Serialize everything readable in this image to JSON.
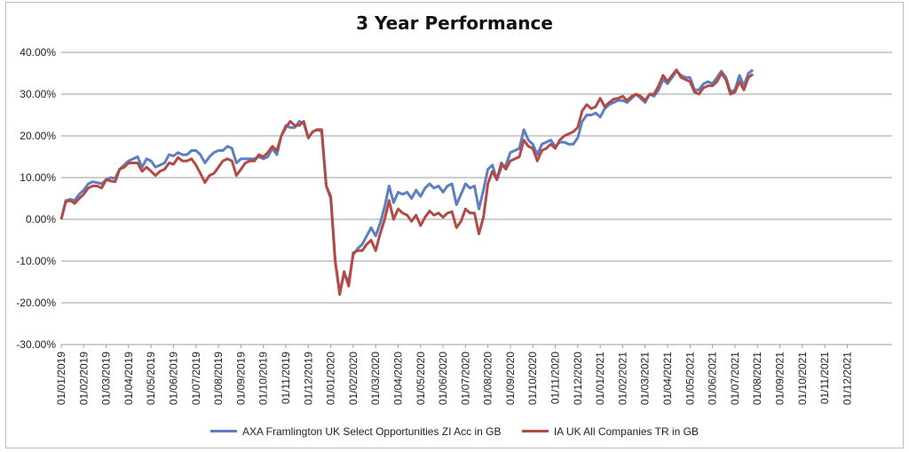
{
  "chart_data": {
    "type": "line",
    "title": "3 Year Performance",
    "ylim": [
      -30,
      40
    ],
    "y_ticks": [
      {
        "v": 40,
        "label": "40.00%"
      },
      {
        "v": 30,
        "label": "30.00%"
      },
      {
        "v": 20,
        "label": "20.00%"
      },
      {
        "v": 10,
        "label": "10.00%"
      },
      {
        "v": 0,
        "label": "0.00%"
      },
      {
        "v": -10,
        "label": "-10.00%"
      },
      {
        "v": -20,
        "label": "-20.00%"
      },
      {
        "v": -30,
        "label": "-30.00%"
      }
    ],
    "x_categories": [
      "01/01/2019",
      "01/02/2019",
      "01/03/2019",
      "01/04/2019",
      "01/05/2019",
      "01/06/2019",
      "01/07/2019",
      "01/08/2019",
      "01/09/2019",
      "01/10/2019",
      "01/11/2019",
      "01/12/2019",
      "01/01/2020",
      "01/02/2020",
      "01/03/2020",
      "01/04/2020",
      "01/05/2020",
      "01/06/2020",
      "01/07/2020",
      "01/08/2020",
      "01/09/2020",
      "01/10/2020",
      "01/11/2020",
      "01/12/2020",
      "01/01/2021",
      "01/02/2021",
      "01/03/2021",
      "01/04/2021",
      "01/05/2021",
      "01/06/2021",
      "01/07/2021",
      "01/08/2021",
      "01/09/2021",
      "01/10/2021",
      "01/11/2021",
      "01/12/2021"
    ],
    "x_span_months": 37,
    "grid": true,
    "legend_position": "bottom",
    "series": [
      {
        "name": "AXA Framlington UK Select Opportunities ZI Acc in GB",
        "color": "#5b7fc0",
        "points": [
          [
            0,
            0
          ],
          [
            0.2,
            4.5
          ],
          [
            0.4,
            4.8
          ],
          [
            0.6,
            4.5
          ],
          [
            0.8,
            6
          ],
          [
            1.0,
            7
          ],
          [
            1.2,
            8.5
          ],
          [
            1.4,
            9
          ],
          [
            1.6,
            8.8
          ],
          [
            1.8,
            8.5
          ],
          [
            2.0,
            9.5
          ],
          [
            2.2,
            10
          ],
          [
            2.4,
            9.8
          ],
          [
            2.6,
            12
          ],
          [
            2.8,
            13
          ],
          [
            3.0,
            14
          ],
          [
            3.2,
            14.5
          ],
          [
            3.4,
            15
          ],
          [
            3.6,
            12.5
          ],
          [
            3.8,
            14.5
          ],
          [
            4.0,
            14
          ],
          [
            4.2,
            12.5
          ],
          [
            4.4,
            13
          ],
          [
            4.6,
            13.5
          ],
          [
            4.8,
            15.5
          ],
          [
            5.0,
            15.2
          ],
          [
            5.2,
            16
          ],
          [
            5.4,
            15.5
          ],
          [
            5.6,
            15.5
          ],
          [
            5.8,
            16.5
          ],
          [
            6.0,
            16.5
          ],
          [
            6.2,
            15.5
          ],
          [
            6.4,
            13.5
          ],
          [
            6.6,
            15
          ],
          [
            6.8,
            16
          ],
          [
            7.0,
            16.5
          ],
          [
            7.2,
            16.5
          ],
          [
            7.4,
            17.5
          ],
          [
            7.6,
            17
          ],
          [
            7.8,
            13.5
          ],
          [
            8.0,
            14.5
          ],
          [
            8.2,
            14.5
          ],
          [
            8.4,
            14.5
          ],
          [
            8.6,
            14.5
          ],
          [
            8.8,
            15
          ],
          [
            9.0,
            14.5
          ],
          [
            9.2,
            15
          ],
          [
            9.4,
            17
          ],
          [
            9.6,
            15.5
          ],
          [
            9.8,
            20
          ],
          [
            10.0,
            22.5
          ],
          [
            10.2,
            22
          ],
          [
            10.4,
            22
          ],
          [
            10.6,
            23.5
          ],
          [
            10.8,
            23
          ],
          [
            11.0,
            19.5
          ],
          [
            11.2,
            21
          ],
          [
            11.4,
            21.5
          ],
          [
            11.6,
            21
          ],
          [
            11.8,
            8
          ],
          [
            12.0,
            5
          ],
          [
            12.2,
            -10
          ],
          [
            12.4,
            -17.5
          ],
          [
            12.6,
            -13
          ],
          [
            12.8,
            -15
          ],
          [
            13.0,
            -8.5
          ],
          [
            13.2,
            -7
          ],
          [
            13.4,
            -6
          ],
          [
            13.6,
            -4
          ],
          [
            13.8,
            -2
          ],
          [
            14.0,
            -4
          ],
          [
            14.2,
            -1
          ],
          [
            14.4,
            3
          ],
          [
            14.6,
            8
          ],
          [
            14.8,
            4
          ],
          [
            15.0,
            6.5
          ],
          [
            15.2,
            6
          ],
          [
            15.4,
            6.5
          ],
          [
            15.6,
            5
          ],
          [
            15.8,
            7
          ],
          [
            16.0,
            5.5
          ],
          [
            16.2,
            7.5
          ],
          [
            16.4,
            8.5
          ],
          [
            16.6,
            7.5
          ],
          [
            16.8,
            8
          ],
          [
            17.0,
            6.5
          ],
          [
            17.2,
            8
          ],
          [
            17.4,
            8.5
          ],
          [
            17.6,
            3.5
          ],
          [
            17.8,
            6
          ],
          [
            18.0,
            8.5
          ],
          [
            18.2,
            7.5
          ],
          [
            18.4,
            8
          ],
          [
            18.6,
            2.5
          ],
          [
            18.8,
            7
          ],
          [
            19.0,
            12
          ],
          [
            19.2,
            13
          ],
          [
            19.4,
            9.5
          ],
          [
            19.6,
            12.5
          ],
          [
            19.8,
            13
          ],
          [
            20.0,
            16
          ],
          [
            20.2,
            16.5
          ],
          [
            20.4,
            17
          ],
          [
            20.6,
            21.5
          ],
          [
            20.8,
            19
          ],
          [
            21.0,
            18
          ],
          [
            21.2,
            15.5
          ],
          [
            21.4,
            18
          ],
          [
            21.6,
            18.5
          ],
          [
            21.8,
            19
          ],
          [
            22.0,
            17.5
          ],
          [
            22.2,
            18.5
          ],
          [
            22.4,
            18.5
          ],
          [
            22.6,
            18
          ],
          [
            22.8,
            18
          ],
          [
            23.0,
            19.5
          ],
          [
            23.2,
            23.5
          ],
          [
            23.4,
            25
          ],
          [
            23.6,
            25
          ],
          [
            23.8,
            25.5
          ],
          [
            24.0,
            24.5
          ],
          [
            24.2,
            26.5
          ],
          [
            24.4,
            27.5
          ],
          [
            24.6,
            28
          ],
          [
            24.8,
            28.5
          ],
          [
            25.0,
            28.5
          ],
          [
            25.2,
            28
          ],
          [
            25.4,
            29
          ],
          [
            25.6,
            30
          ],
          [
            25.8,
            29
          ],
          [
            26.0,
            28
          ],
          [
            26.2,
            30
          ],
          [
            26.4,
            29.5
          ],
          [
            26.6,
            31
          ],
          [
            26.8,
            33.5
          ],
          [
            27.0,
            32.5
          ],
          [
            27.2,
            34
          ],
          [
            27.4,
            35.5
          ],
          [
            27.6,
            34.5
          ],
          [
            27.8,
            34
          ],
          [
            28.0,
            34
          ],
          [
            28.2,
            31
          ],
          [
            28.4,
            31
          ],
          [
            28.6,
            32.5
          ],
          [
            28.8,
            33
          ],
          [
            29.0,
            32.5
          ],
          [
            29.2,
            34
          ],
          [
            29.4,
            35.5
          ],
          [
            29.6,
            34
          ],
          [
            29.8,
            30.5
          ],
          [
            30.0,
            31
          ],
          [
            30.2,
            34.5
          ],
          [
            30.4,
            32
          ],
          [
            30.6,
            35
          ],
          [
            30.8,
            35.8
          ]
        ]
      },
      {
        "name": "IA UK All Companies TR in GB",
        "color": "#b34a44",
        "points": [
          [
            0,
            0
          ],
          [
            0.2,
            4.2
          ],
          [
            0.4,
            4.5
          ],
          [
            0.6,
            3.8
          ],
          [
            0.8,
            5
          ],
          [
            1.0,
            6
          ],
          [
            1.2,
            7.5
          ],
          [
            1.4,
            8
          ],
          [
            1.6,
            8
          ],
          [
            1.8,
            7.5
          ],
          [
            2.0,
            9.5
          ],
          [
            2.2,
            9.2
          ],
          [
            2.4,
            9
          ],
          [
            2.6,
            12
          ],
          [
            2.8,
            12.5
          ],
          [
            3.0,
            13.5
          ],
          [
            3.2,
            13.5
          ],
          [
            3.4,
            13.5
          ],
          [
            3.6,
            11.5
          ],
          [
            3.8,
            12.5
          ],
          [
            4.0,
            11.5
          ],
          [
            4.2,
            10.5
          ],
          [
            4.4,
            11.5
          ],
          [
            4.6,
            12
          ],
          [
            4.8,
            13.5
          ],
          [
            5.0,
            13.2
          ],
          [
            5.2,
            14.8
          ],
          [
            5.4,
            14
          ],
          [
            5.6,
            14
          ],
          [
            5.8,
            14.5
          ],
          [
            6.0,
            13
          ],
          [
            6.2,
            11
          ],
          [
            6.4,
            8.8
          ],
          [
            6.6,
            10.5
          ],
          [
            6.8,
            11
          ],
          [
            7.0,
            12.5
          ],
          [
            7.2,
            14
          ],
          [
            7.4,
            14.5
          ],
          [
            7.6,
            14
          ],
          [
            7.8,
            10.5
          ],
          [
            8.0,
            12
          ],
          [
            8.2,
            13.5
          ],
          [
            8.4,
            14
          ],
          [
            8.6,
            14
          ],
          [
            8.8,
            15.5
          ],
          [
            9.0,
            15
          ],
          [
            9.2,
            16
          ],
          [
            9.4,
            17.5
          ],
          [
            9.6,
            16.5
          ],
          [
            9.8,
            20
          ],
          [
            10.0,
            22
          ],
          [
            10.2,
            23.5
          ],
          [
            10.4,
            22.5
          ],
          [
            10.6,
            22.5
          ],
          [
            10.8,
            23.5
          ],
          [
            11.0,
            19.5
          ],
          [
            11.2,
            21
          ],
          [
            11.4,
            21.5
          ],
          [
            11.6,
            21.5
          ],
          [
            11.8,
            8
          ],
          [
            12.0,
            5.5
          ],
          [
            12.2,
            -10
          ],
          [
            12.4,
            -18
          ],
          [
            12.6,
            -12.5
          ],
          [
            12.8,
            -16
          ],
          [
            13.0,
            -8
          ],
          [
            13.2,
            -7.5
          ],
          [
            13.4,
            -7.5
          ],
          [
            13.6,
            -6
          ],
          [
            13.8,
            -5
          ],
          [
            14.0,
            -7.5
          ],
          [
            14.2,
            -3.5
          ],
          [
            14.4,
            0
          ],
          [
            14.6,
            4.5
          ],
          [
            14.8,
            0
          ],
          [
            15.0,
            2.5
          ],
          [
            15.2,
            1.5
          ],
          [
            15.4,
            1
          ],
          [
            15.6,
            -0.5
          ],
          [
            15.8,
            1
          ],
          [
            16.0,
            -1.5
          ],
          [
            16.2,
            0.5
          ],
          [
            16.4,
            2
          ],
          [
            16.6,
            1
          ],
          [
            16.8,
            1.5
          ],
          [
            17.0,
            0.5
          ],
          [
            17.2,
            1.5
          ],
          [
            17.4,
            1.8
          ],
          [
            17.6,
            -2
          ],
          [
            17.8,
            -0.5
          ],
          [
            18.0,
            2.5
          ],
          [
            18.2,
            1.5
          ],
          [
            18.4,
            1.5
          ],
          [
            18.6,
            -3.5
          ],
          [
            18.8,
            0.5
          ],
          [
            19.0,
            8.5
          ],
          [
            19.2,
            11.5
          ],
          [
            19.4,
            9.5
          ],
          [
            19.6,
            13.5
          ],
          [
            19.8,
            12
          ],
          [
            20.0,
            14
          ],
          [
            20.2,
            14.5
          ],
          [
            20.4,
            15
          ],
          [
            20.6,
            19
          ],
          [
            20.8,
            17.5
          ],
          [
            21.0,
            17
          ],
          [
            21.2,
            14
          ],
          [
            21.4,
            16.5
          ],
          [
            21.6,
            17
          ],
          [
            21.8,
            18
          ],
          [
            22.0,
            17
          ],
          [
            22.2,
            19
          ],
          [
            22.4,
            20
          ],
          [
            22.6,
            20.5
          ],
          [
            22.8,
            21
          ],
          [
            23.0,
            22
          ],
          [
            23.2,
            26
          ],
          [
            23.4,
            27.5
          ],
          [
            23.6,
            26.5
          ],
          [
            23.8,
            27
          ],
          [
            24.0,
            29
          ],
          [
            24.2,
            27
          ],
          [
            24.4,
            28
          ],
          [
            24.6,
            28.8
          ],
          [
            24.8,
            29
          ],
          [
            25.0,
            29.5
          ],
          [
            25.2,
            28.5
          ],
          [
            25.4,
            29.5
          ],
          [
            25.6,
            30
          ],
          [
            25.8,
            29.5
          ],
          [
            26.0,
            28.5
          ],
          [
            26.2,
            30
          ],
          [
            26.4,
            30
          ],
          [
            26.6,
            32
          ],
          [
            26.8,
            34.5
          ],
          [
            27.0,
            33
          ],
          [
            27.2,
            34.5
          ],
          [
            27.4,
            35.8
          ],
          [
            27.6,
            34
          ],
          [
            27.8,
            33.5
          ],
          [
            28.0,
            33
          ],
          [
            28.2,
            30.5
          ],
          [
            28.4,
            30
          ],
          [
            28.6,
            31.5
          ],
          [
            28.8,
            32
          ],
          [
            29.0,
            32
          ],
          [
            29.2,
            33
          ],
          [
            29.4,
            35
          ],
          [
            29.6,
            33.5
          ],
          [
            29.8,
            30
          ],
          [
            30.0,
            30.5
          ],
          [
            30.2,
            33
          ],
          [
            30.4,
            31
          ],
          [
            30.6,
            34
          ],
          [
            30.8,
            34.8
          ]
        ]
      }
    ]
  }
}
